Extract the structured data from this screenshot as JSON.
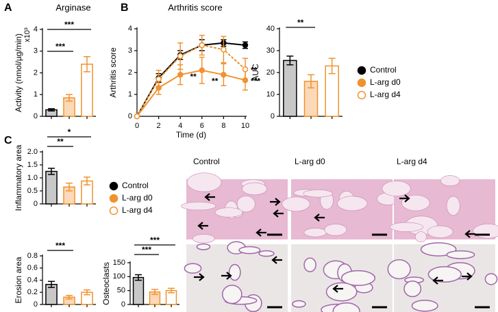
{
  "panel_labels": [
    "A",
    "B",
    "C"
  ],
  "image_labels": [
    "Control",
    "L-arg d0",
    "L-arg d4"
  ],
  "chart_data": [
    {
      "type": "bar",
      "title": "Arginase",
      "ylabel": "Activity (nmol/µg/min)",
      "yscale_label": "x10³",
      "categories": [
        null,
        null,
        null
      ],
      "values": [
        0.3,
        0.85,
        2.4
      ],
      "errors": [
        0.05,
        0.15,
        0.35
      ],
      "colors": [
        "#c8c8c8",
        "#fcd9b8",
        "#ffffff"
      ],
      "edgecolors": [
        "#000000",
        "#f0922e",
        "#f0922e"
      ],
      "ylim": [
        0,
        4
      ],
      "yticks": [
        0,
        1,
        2,
        3,
        4
      ],
      "brackets": [
        {
          "pair": [
            0,
            1
          ],
          "text": "***"
        },
        {
          "pair": [
            0,
            2
          ],
          "text": "***"
        }
      ]
    },
    {
      "type": "line",
      "title": "Arthritis score",
      "xlabel": "Time (d)",
      "ylabel": "Arthritis score",
      "x": [
        0,
        2,
        4,
        6,
        8,
        10
      ],
      "xlim": [
        0,
        10
      ],
      "xticks": [
        0,
        2,
        4,
        6,
        8,
        10
      ],
      "ylim": [
        0,
        4
      ],
      "yticks": [
        0,
        1,
        2,
        3,
        4
      ],
      "series": [
        {
          "name": "Control",
          "color": "#000000",
          "fill": "#000000",
          "dashed": false,
          "values": [
            0,
            1.75,
            2.8,
            3.25,
            3.35,
            3.25
          ],
          "errors": [
            0,
            0.2,
            0.2,
            0.25,
            0.15,
            0.15
          ]
        },
        {
          "name": "L-arg d0",
          "color": "#f0922e",
          "fill": "#f0922e",
          "dashed": false,
          "values": [
            0,
            1.3,
            1.9,
            2.1,
            1.9,
            1.65
          ],
          "errors": [
            0,
            0.3,
            0.45,
            0.6,
            0.5,
            0.45
          ]
        },
        {
          "name": "L-arg d4",
          "color": "#f0922e",
          "fill": "#ffffff",
          "dashed": true,
          "values": [
            0,
            1.7,
            2.75,
            3.25,
            3.05,
            2.15
          ],
          "errors": [
            0,
            0.4,
            0.6,
            0.45,
            0.6,
            0.5
          ]
        }
      ],
      "annotations": [
        {
          "text": "**",
          "series": 1,
          "index": 3
        },
        {
          "text": "**",
          "series": 1,
          "index": 4
        },
        {
          "text": "**",
          "series": 2,
          "index": 5
        },
        {
          "text": "***",
          "series": 1,
          "index": 5
        }
      ]
    },
    {
      "type": "bar",
      "ylabel": "AUC",
      "categories": [
        null,
        null,
        null
      ],
      "values": [
        25.5,
        16,
        23
      ],
      "errors": [
        2,
        3,
        3.5
      ],
      "colors": [
        "#c8c8c8",
        "#fcd9b8",
        "#ffffff"
      ],
      "edgecolors": [
        "#000000",
        "#f0922e",
        "#f0922e"
      ],
      "ylim": [
        0,
        40
      ],
      "yticks": [
        0,
        10,
        20,
        30,
        40
      ],
      "brackets": [
        {
          "pair": [
            0,
            1
          ],
          "text": "**"
        }
      ]
    },
    {
      "type": "bar",
      "ylabel": "Inflammatory area",
      "categories": [
        null,
        null,
        null
      ],
      "values": [
        1.25,
        0.65,
        0.88
      ],
      "errors": [
        0.12,
        0.15,
        0.15
      ],
      "colors": [
        "#c8c8c8",
        "#fcd9b8",
        "#ffffff"
      ],
      "edgecolors": [
        "#000000",
        "#f0922e",
        "#f0922e"
      ],
      "ylim": [
        0,
        2
      ],
      "yticks": [
        0,
        0.5,
        {
          "value": 1,
          "label": "1.0"
        },
        1.5,
        {
          "value": 2,
          "label": "2.0"
        }
      ],
      "brackets": [
        {
          "pair": [
            0,
            1
          ],
          "text": "**"
        },
        {
          "pair": [
            0,
            2
          ],
          "text": "*"
        }
      ],
      "legend": [
        "Control",
        "L-arg d0",
        "L-arg d4"
      ]
    },
    {
      "type": "bar",
      "ylabel": "Erosion area",
      "categories": [
        null,
        null,
        null
      ],
      "values": [
        0.33,
        0.12,
        0.2
      ],
      "errors": [
        0.05,
        0.03,
        0.04
      ],
      "colors": [
        "#c8c8c8",
        "#fcd9b8",
        "#ffffff"
      ],
      "edgecolors": [
        "#000000",
        "#f0922e",
        "#f0922e"
      ],
      "ylim": [
        0,
        0.8
      ],
      "yticks": [
        0,
        0.2,
        0.4,
        0.6,
        0.8
      ],
      "brackets": [
        {
          "pair": [
            0,
            1
          ],
          "text": "***"
        }
      ]
    },
    {
      "type": "bar",
      "ylabel": "Osteoclasts",
      "categories": [
        null,
        null,
        null
      ],
      "values": [
        97,
        45,
        50
      ],
      "errors": [
        10,
        9,
        8
      ],
      "colors": [
        "#c8c8c8",
        "#fcd9b8",
        "#ffffff"
      ],
      "edgecolors": [
        "#000000",
        "#f0922e",
        "#f0922e"
      ],
      "ylim": [
        0,
        150
      ],
      "yticks": [
        0,
        50,
        100,
        150
      ],
      "brackets": [
        {
          "pair": [
            0,
            1
          ],
          "text": "***"
        },
        {
          "pair": [
            0,
            2
          ],
          "text": "***"
        }
      ]
    }
  ]
}
